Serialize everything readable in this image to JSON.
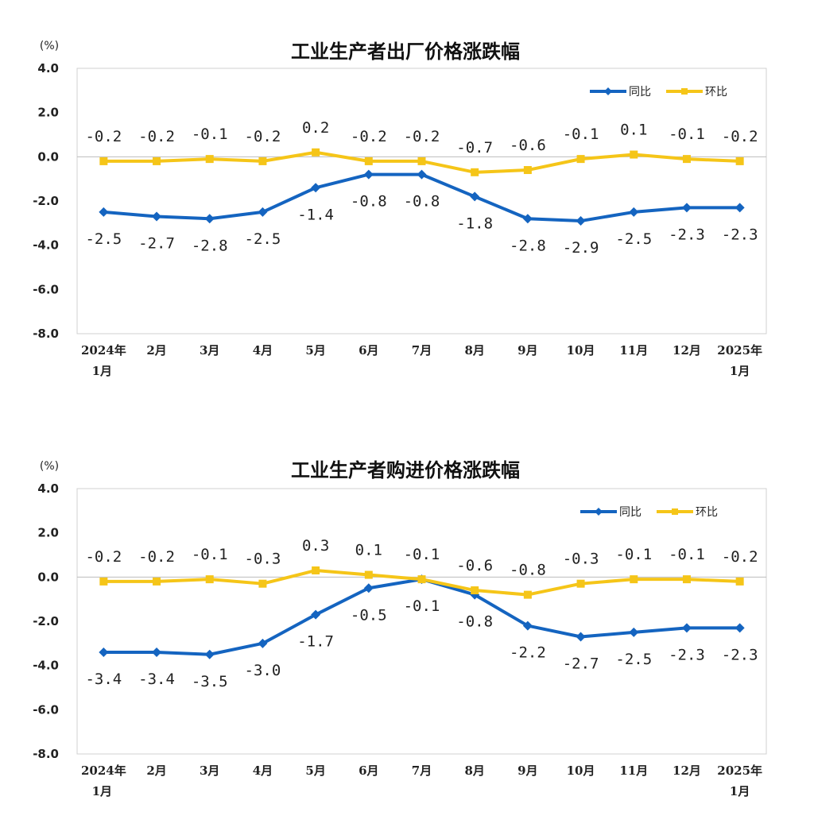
{
  "chart_data": [
    {
      "type": "line",
      "title": "工业生产者出厂价格涨跌幅",
      "unit_label": "(%)",
      "ylim": [
        -8.0,
        4.0
      ],
      "yticks": [
        "4.0",
        "2.0",
        "0.0",
        "-2.0",
        "-4.0",
        "-6.0",
        "-8.0"
      ],
      "categories": [
        [
          "2024年",
          "1月"
        ],
        [
          "2月"
        ],
        [
          "3月"
        ],
        [
          "4月"
        ],
        [
          "5月"
        ],
        [
          "6月"
        ],
        [
          "7月"
        ],
        [
          "8月"
        ],
        [
          "9月"
        ],
        [
          "10月"
        ],
        [
          "11月"
        ],
        [
          "12月"
        ],
        [
          "2025年",
          "1月"
        ]
      ],
      "legend_position": "top-right",
      "series": [
        {
          "name": "同比",
          "color": "#1464c0",
          "marker": "diamond",
          "values": [
            -2.5,
            -2.7,
            -2.8,
            -2.5,
            -1.4,
            -0.8,
            -0.8,
            -1.8,
            -2.8,
            -2.9,
            -2.5,
            -2.3,
            -2.3
          ],
          "labels": [
            "-2.5",
            "-2.7",
            "-2.8",
            "-2.5",
            "-1.4",
            "-0.8",
            "-0.8",
            "-1.8",
            "-2.8",
            "-2.9",
            "-2.5",
            "-2.3",
            "-2.3"
          ]
        },
        {
          "name": "环比",
          "color": "#f5c518",
          "marker": "square",
          "values": [
            -0.2,
            -0.2,
            -0.1,
            -0.2,
            0.2,
            -0.2,
            -0.2,
            -0.7,
            -0.6,
            -0.1,
            0.1,
            -0.1,
            -0.2
          ],
          "labels": [
            "-0.2",
            "-0.2",
            "-0.1",
            "-0.2",
            "0.2",
            "-0.2",
            "-0.2",
            "-0.7",
            "-0.6",
            "-0.1",
            "0.1",
            "-0.1",
            "-0.2"
          ]
        }
      ]
    },
    {
      "type": "line",
      "title": "工业生产者购进价格涨跌幅",
      "unit_label": "(%)",
      "ylim": [
        -8.0,
        4.0
      ],
      "yticks": [
        "4.0",
        "2.0",
        "0.0",
        "-2.0",
        "-4.0",
        "-6.0",
        "-8.0"
      ],
      "categories": [
        [
          "2024年",
          "1月"
        ],
        [
          "2月"
        ],
        [
          "3月"
        ],
        [
          "4月"
        ],
        [
          "5月"
        ],
        [
          "6月"
        ],
        [
          "7月"
        ],
        [
          "8月"
        ],
        [
          "9月"
        ],
        [
          "10月"
        ],
        [
          "11月"
        ],
        [
          "12月"
        ],
        [
          "2025年",
          "1月"
        ]
      ],
      "legend_position": "top-right",
      "series": [
        {
          "name": "同比",
          "color": "#1464c0",
          "marker": "diamond",
          "values": [
            -3.4,
            -3.4,
            -3.5,
            -3.0,
            -1.7,
            -0.5,
            -0.1,
            -0.8,
            -2.2,
            -2.7,
            -2.5,
            -2.3,
            -2.3
          ],
          "labels": [
            "-3.4",
            "-3.4",
            "-3.5",
            "-3.0",
            "-1.7",
            "-0.5",
            "-0.1",
            "-0.8",
            "-2.2",
            "-2.7",
            "-2.5",
            "-2.3",
            "-2.3"
          ]
        },
        {
          "name": "环比",
          "color": "#f5c518",
          "marker": "square",
          "values": [
            -0.2,
            -0.2,
            -0.1,
            -0.3,
            0.3,
            0.1,
            -0.1,
            -0.6,
            -0.8,
            -0.3,
            -0.1,
            -0.1,
            -0.2
          ],
          "labels": [
            "-0.2",
            "-0.2",
            "-0.1",
            "-0.3",
            "0.3",
            "0.1",
            "-0.1",
            "-0.6",
            "-0.8",
            "-0.3",
            "-0.1",
            "-0.1",
            "-0.2"
          ]
        }
      ]
    }
  ]
}
